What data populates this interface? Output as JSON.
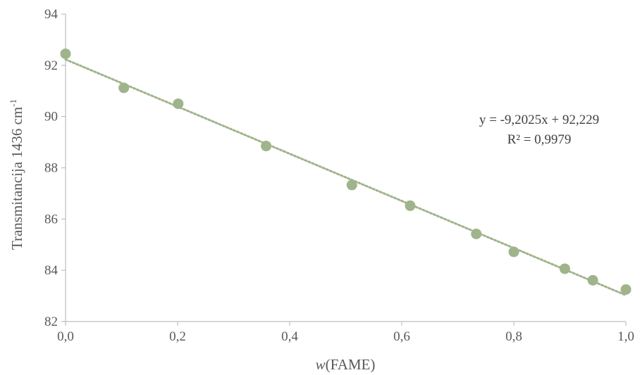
{
  "chart_data": {
    "type": "scatter",
    "x": [
      0.0,
      0.104,
      0.201,
      0.358,
      0.511,
      0.615,
      0.733,
      0.8,
      0.891,
      0.941,
      1.0
    ],
    "y": [
      92.45,
      91.12,
      90.5,
      88.85,
      87.33,
      86.52,
      85.42,
      84.72,
      84.06,
      83.61,
      83.25
    ],
    "xlabel_prefix": "w",
    "xlabel_rest": "(FAME)",
    "ylabel_main": "Transmitancija 1436 cm",
    "ylabel_sup": "-1",
    "xlim": [
      0,
      1
    ],
    "ylim": [
      82,
      94
    ],
    "x_ticks": [
      0,
      0.2,
      0.4,
      0.6,
      0.8,
      1.0
    ],
    "x_tick_labels": [
      "0,0",
      "0,2",
      "0,4",
      "0,6",
      "0,8",
      "1,0"
    ],
    "y_ticks": [
      82,
      84,
      86,
      88,
      90,
      92,
      94
    ],
    "y_tick_labels": [
      "82",
      "84",
      "86",
      "88",
      "90",
      "92",
      "94"
    ],
    "grid": false,
    "legend": "none",
    "trendline": {
      "type": "linear",
      "slope": -9.2025,
      "intercept": 92.229,
      "style": "dotted",
      "equation_label": "y = -9,2025x + 92,229",
      "r2_label": "R² = 0,9979"
    },
    "marker_color": "#a0b48c",
    "trendline_color": "#a0b48c",
    "axis_color": "#bfbfbf"
  }
}
